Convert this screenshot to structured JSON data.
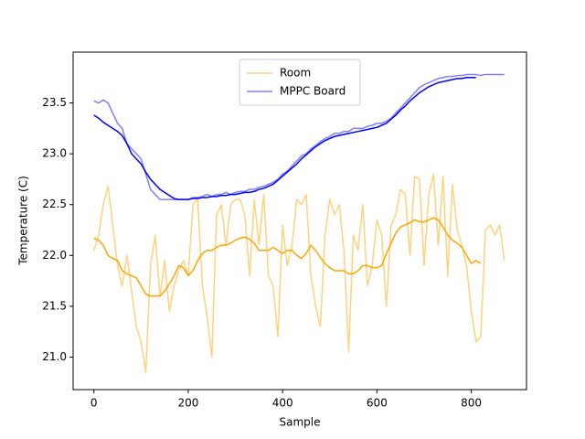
{
  "chart_data": {
    "type": "line",
    "xlabel": "Sample",
    "ylabel": "Temperature (C)",
    "x": [
      0,
      10,
      20,
      30,
      40,
      50,
      60,
      70,
      80,
      90,
      100,
      110,
      120,
      130,
      140,
      150,
      160,
      170,
      180,
      190,
      200,
      210,
      220,
      230,
      240,
      250,
      260,
      270,
      280,
      290,
      300,
      310,
      320,
      330,
      340,
      350,
      360,
      370,
      380,
      390,
      400,
      410,
      420,
      430,
      440,
      450,
      460,
      470,
      480,
      490,
      500,
      510,
      520,
      530,
      540,
      550,
      560,
      570,
      580,
      590,
      600,
      610,
      620,
      630,
      640,
      650,
      660,
      670,
      680,
      690,
      700,
      710,
      720,
      730,
      740,
      750,
      760,
      770,
      780,
      790,
      800,
      810,
      820,
      830,
      840,
      850,
      860,
      870
    ],
    "series": [
      {
        "name": "Room",
        "color": "#ffa500",
        "alpha": 0.5,
        "values": [
          22.05,
          22.2,
          22.5,
          22.68,
          22.3,
          21.9,
          21.7,
          22.0,
          21.65,
          21.3,
          21.15,
          20.85,
          21.9,
          22.2,
          21.6,
          21.95,
          21.45,
          21.7,
          21.85,
          21.95,
          21.8,
          22.5,
          22.55,
          21.7,
          21.4,
          21.0,
          22.4,
          22.5,
          22.1,
          22.5,
          22.55,
          22.55,
          22.4,
          21.8,
          22.55,
          22.1,
          22.6,
          21.8,
          21.7,
          21.2,
          22.3,
          21.9,
          22.1,
          22.55,
          22.5,
          22.6,
          21.8,
          21.5,
          21.3,
          22.2,
          22.55,
          22.4,
          22.5,
          22.05,
          21.05,
          22.2,
          22.05,
          22.5,
          21.7,
          21.9,
          22.35,
          22.2,
          21.5,
          22.3,
          22.4,
          22.65,
          22.6,
          22.0,
          22.78,
          22.75,
          21.9,
          22.6,
          22.8,
          22.1,
          22.78,
          21.8,
          22.7,
          22.25,
          22.1,
          21.9,
          21.45,
          21.15,
          21.2,
          22.25,
          22.3,
          22.2,
          22.3,
          21.95
        ]
      },
      {
        "color": "#ffa500",
        "alpha": 1,
        "values": [
          22.17,
          22.15,
          22.1,
          22.0,
          21.97,
          21.95,
          21.85,
          21.82,
          21.8,
          21.78,
          21.7,
          21.62,
          21.6,
          21.6,
          21.6,
          21.65,
          21.72,
          21.8,
          21.9,
          21.88,
          21.8,
          21.85,
          21.95,
          22.02,
          22.05,
          22.05,
          22.08,
          22.1,
          22.1,
          22.12,
          22.15,
          22.17,
          22.18,
          22.16,
          22.12,
          22.05,
          22.05,
          22.05,
          22.08,
          22.05,
          22.02,
          22.05,
          22.05,
          22.0,
          21.97,
          22.02,
          22.1,
          22.05,
          21.98,
          21.92,
          21.88,
          21.85,
          21.85,
          21.85,
          21.82,
          21.82,
          21.85,
          21.9,
          21.9,
          21.88,
          21.88,
          21.9,
          22.02,
          22.12,
          22.22,
          22.28,
          22.3,
          22.32,
          22.35,
          22.33,
          22.33,
          22.35,
          22.37,
          22.35,
          22.28,
          22.2,
          22.15,
          22.12,
          22.08,
          22.0,
          21.92,
          21.95,
          21.92,
          null,
          null,
          null,
          null,
          null
        ]
      },
      {
        "name": "MPPC Board",
        "color": "#0000ff",
        "alpha": 0.5,
        "values": [
          23.52,
          23.5,
          23.53,
          23.5,
          23.4,
          23.3,
          23.25,
          23.1,
          23.05,
          23.0,
          22.95,
          22.8,
          22.65,
          22.6,
          22.55,
          22.55,
          22.55,
          22.55,
          22.55,
          22.55,
          22.55,
          22.57,
          22.57,
          22.58,
          22.6,
          22.58,
          22.6,
          22.6,
          22.62,
          22.6,
          22.62,
          22.63,
          22.63,
          22.65,
          22.65,
          22.67,
          22.68,
          22.7,
          22.72,
          22.75,
          22.8,
          22.83,
          22.88,
          22.93,
          22.98,
          23.0,
          23.05,
          23.08,
          23.12,
          23.15,
          23.17,
          23.2,
          23.2,
          23.22,
          23.22,
          23.25,
          23.25,
          23.25,
          23.27,
          23.28,
          23.3,
          23.3,
          23.32,
          23.35,
          23.4,
          23.45,
          23.5,
          23.55,
          23.6,
          23.65,
          23.68,
          23.7,
          23.72,
          23.74,
          23.75,
          23.76,
          23.76,
          23.77,
          23.77,
          23.78,
          23.78,
          23.78,
          23.77,
          23.78,
          23.78,
          23.78,
          23.78,
          23.78
        ]
      },
      {
        "color": "#0000ff",
        "alpha": 1,
        "values": [
          23.38,
          23.35,
          23.31,
          23.28,
          23.25,
          23.22,
          23.18,
          23.1,
          23.0,
          22.95,
          22.9,
          22.82,
          22.75,
          22.7,
          22.65,
          22.62,
          22.59,
          22.56,
          22.55,
          22.55,
          22.55,
          22.56,
          22.56,
          22.57,
          22.57,
          22.58,
          22.58,
          22.59,
          22.59,
          22.6,
          22.6,
          22.61,
          22.62,
          22.62,
          22.63,
          22.65,
          22.66,
          22.68,
          22.7,
          22.74,
          22.78,
          22.82,
          22.86,
          22.9,
          22.95,
          22.99,
          23.03,
          23.07,
          23.1,
          23.13,
          23.15,
          23.17,
          23.18,
          23.19,
          23.2,
          23.21,
          23.22,
          23.23,
          23.24,
          23.25,
          23.26,
          23.28,
          23.3,
          23.34,
          23.38,
          23.43,
          23.47,
          23.52,
          23.56,
          23.6,
          23.63,
          23.66,
          23.68,
          23.7,
          23.71,
          23.72,
          23.73,
          23.74,
          23.74,
          23.75,
          23.75,
          23.75,
          null,
          null,
          null,
          null,
          null,
          null
        ]
      }
    ],
    "xlim": [
      -44,
      917
    ],
    "ylim": [
      20.68,
      24.0
    ],
    "xticks": [
      0,
      200,
      400,
      600,
      800
    ],
    "yticks": [
      {
        "value": 21,
        "label": "21.0"
      },
      21.5,
      {
        "value": 22,
        "label": "22.0"
      },
      22.5,
      {
        "value": 23,
        "label": "23.0"
      },
      23.5
    ],
    "legend": "upper center"
  }
}
